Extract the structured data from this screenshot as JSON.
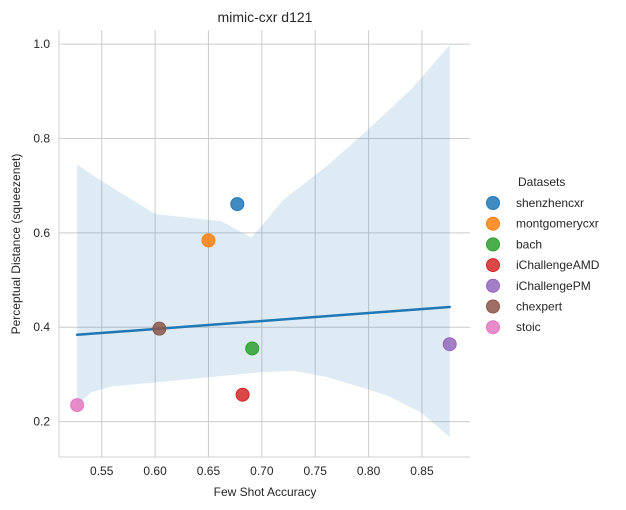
{
  "chart_data": {
    "type": "scatter",
    "title": "mimic-cxr d121",
    "xlabel": "Few Shot Accuracy",
    "ylabel": "Perceptual Distance (squeezenet)",
    "xlim": [
      0.51,
      0.895
    ],
    "ylim": [
      0.125,
      1.03
    ],
    "xticks": [
      0.55,
      0.6,
      0.65,
      0.7,
      0.75,
      0.8,
      0.85
    ],
    "xtick_labels": [
      "0.55",
      "0.60",
      "0.65",
      "0.70",
      "0.75",
      "0.80",
      "0.85"
    ],
    "yticks": [
      0.2,
      0.4,
      0.6,
      0.8,
      1.0
    ],
    "ytick_labels": [
      "0.2",
      "0.4",
      "0.6",
      "0.8",
      "1.0"
    ],
    "grid": true,
    "legend": {
      "title": "Datasets",
      "placement": "right"
    },
    "series": [
      {
        "name": "shenzhencxr",
        "color": "#1f77b4",
        "x": 0.677,
        "y": 0.661
      },
      {
        "name": "montgomerycxr",
        "color": "#ff7f0e",
        "x": 0.65,
        "y": 0.584
      },
      {
        "name": "bach",
        "color": "#2ca02c",
        "x": 0.691,
        "y": 0.355
      },
      {
        "name": "iChallengeAMD",
        "color": "#d62728",
        "x": 0.682,
        "y": 0.257
      },
      {
        "name": "iChallengePM",
        "color": "#9467bd",
        "x": 0.876,
        "y": 0.364
      },
      {
        "name": "chexpert",
        "color": "#8c564b",
        "x": 0.604,
        "y": 0.397
      },
      {
        "name": "stoic",
        "color": "#e377c2",
        "x": 0.527,
        "y": 0.235
      }
    ],
    "regression": {
      "color": "#1f77b4",
      "x_range": [
        0.527,
        0.876
      ],
      "line": [
        [
          0.527,
          0.384
        ],
        [
          0.876,
          0.443
        ]
      ],
      "ci_upper": [
        [
          0.527,
          0.745
        ],
        [
          0.55,
          0.71
        ],
        [
          0.6,
          0.64
        ],
        [
          0.64,
          0.63
        ],
        [
          0.662,
          0.625
        ],
        [
          0.69,
          0.59
        ],
        [
          0.7,
          0.615
        ],
        [
          0.72,
          0.67
        ],
        [
          0.76,
          0.74
        ],
        [
          0.8,
          0.82
        ],
        [
          0.84,
          0.905
        ],
        [
          0.876,
          0.998
        ]
      ],
      "ci_lower": [
        [
          0.527,
          0.235
        ],
        [
          0.54,
          0.262
        ],
        [
          0.56,
          0.275
        ],
        [
          0.6,
          0.283
        ],
        [
          0.64,
          0.292
        ],
        [
          0.7,
          0.305
        ],
        [
          0.73,
          0.308
        ],
        [
          0.76,
          0.295
        ],
        [
          0.79,
          0.275
        ],
        [
          0.82,
          0.253
        ],
        [
          0.85,
          0.218
        ],
        [
          0.876,
          0.167
        ]
      ]
    }
  }
}
